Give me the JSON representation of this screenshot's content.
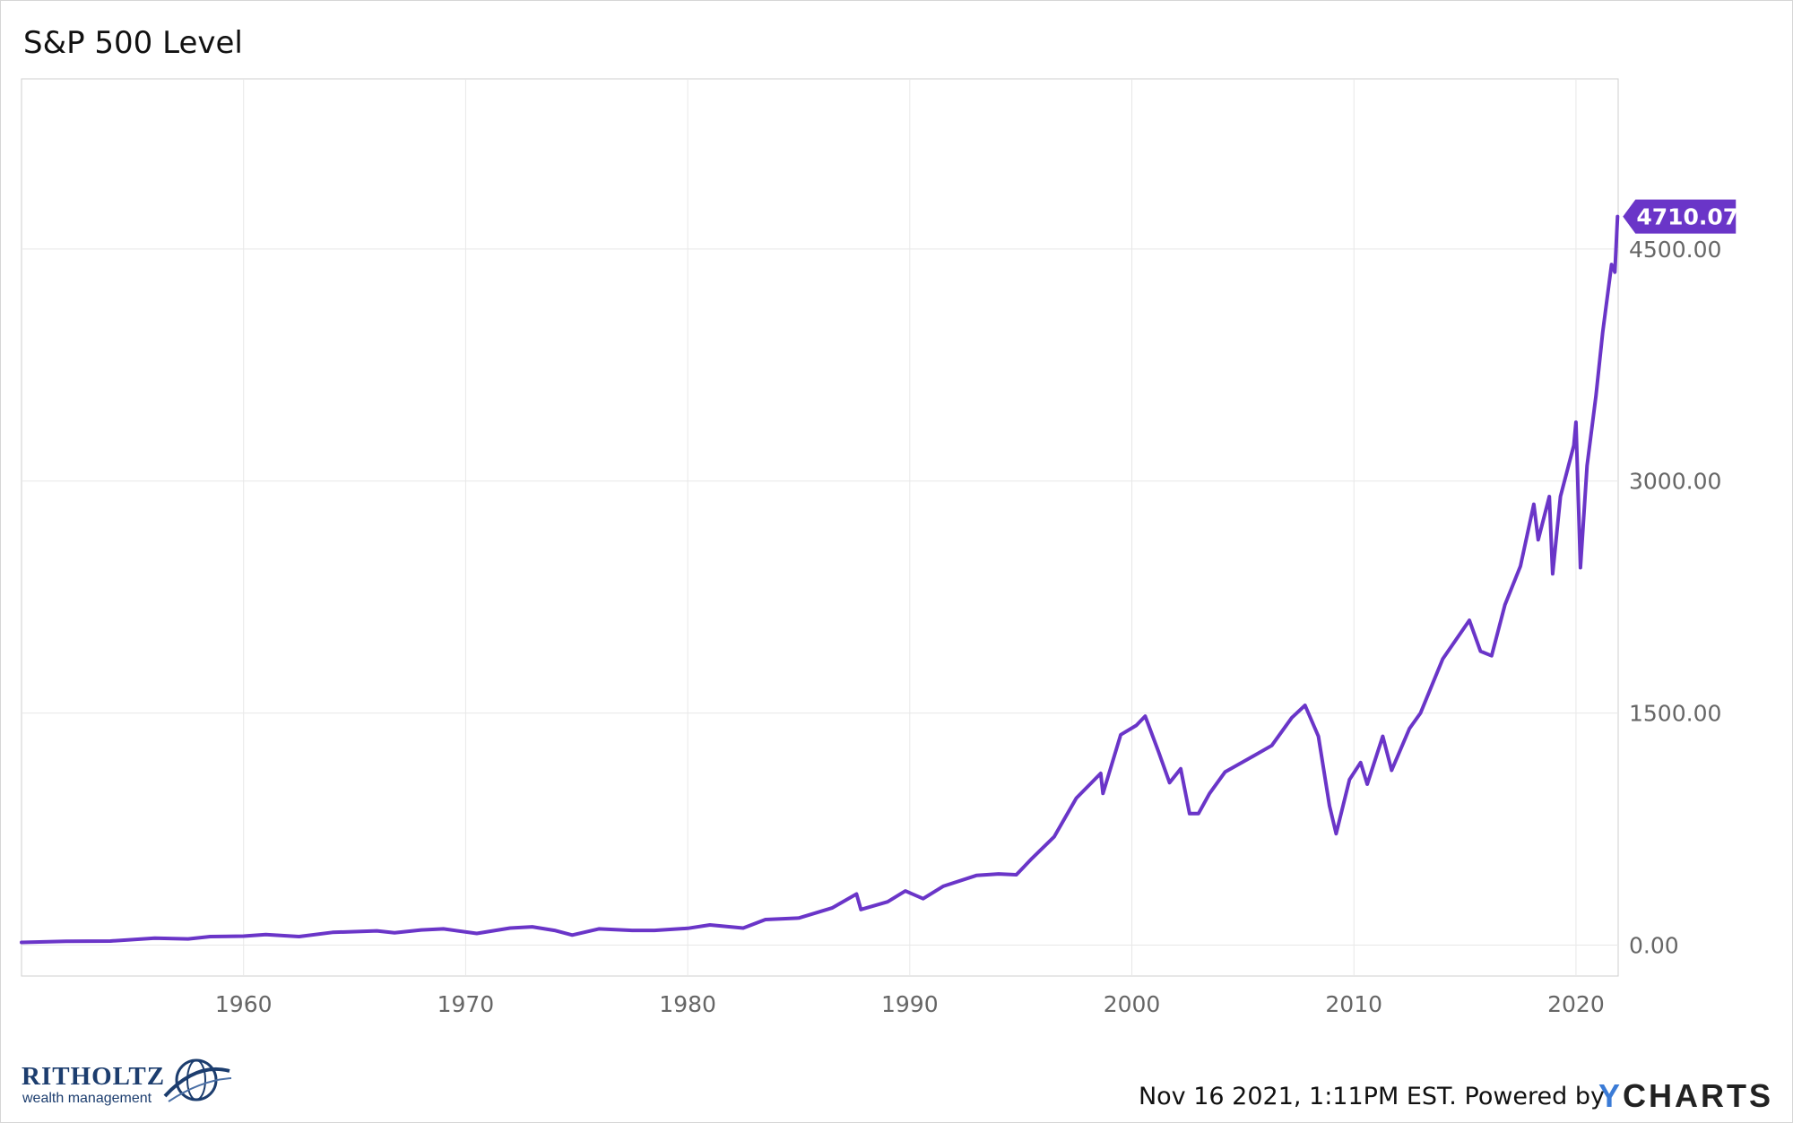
{
  "chart_data": {
    "type": "line",
    "title": "S&P 500 Level",
    "xlabel": "",
    "ylabel": "",
    "xlim": [
      1950.0,
      2021.9
    ],
    "ylim": [
      -200,
      5600
    ],
    "x_ticks": [
      1960,
      1970,
      1980,
      1990,
      2000,
      2010,
      2020
    ],
    "x_tick_labels": [
      "1960",
      "1970",
      "1980",
      "1990",
      "2000",
      "2010",
      "2020"
    ],
    "y_ticks": [
      0,
      1500,
      3000,
      4500
    ],
    "y_tick_labels": [
      "0.00",
      "1500.00",
      "3000.00",
      "4500.00"
    ],
    "grid": true,
    "legend": "none",
    "last_value_label": "4710.07",
    "series": [
      {
        "color": "#6a35c8",
        "points": [
          [
            1950.0,
            17
          ],
          [
            1952.0,
            24
          ],
          [
            1954.0,
            26
          ],
          [
            1956.0,
            45
          ],
          [
            1957.5,
            40
          ],
          [
            1958.5,
            55
          ],
          [
            1960.0,
            58
          ],
          [
            1961.0,
            68
          ],
          [
            1962.5,
            55
          ],
          [
            1964.0,
            82
          ],
          [
            1966.0,
            92
          ],
          [
            1966.8,
            80
          ],
          [
            1968.0,
            98
          ],
          [
            1969.0,
            105
          ],
          [
            1970.5,
            75
          ],
          [
            1972.0,
            110
          ],
          [
            1973.0,
            118
          ],
          [
            1974.0,
            95
          ],
          [
            1974.8,
            65
          ],
          [
            1976.0,
            105
          ],
          [
            1977.5,
            95
          ],
          [
            1978.5,
            95
          ],
          [
            1980.0,
            108
          ],
          [
            1981.0,
            130
          ],
          [
            1982.5,
            110
          ],
          [
            1983.5,
            165
          ],
          [
            1985.0,
            175
          ],
          [
            1986.5,
            240
          ],
          [
            1987.6,
            330
          ],
          [
            1987.8,
            230
          ],
          [
            1989.0,
            280
          ],
          [
            1989.8,
            350
          ],
          [
            1990.6,
            300
          ],
          [
            1991.5,
            380
          ],
          [
            1993.0,
            450
          ],
          [
            1994.0,
            460
          ],
          [
            1994.8,
            455
          ],
          [
            1995.5,
            560
          ],
          [
            1996.5,
            700
          ],
          [
            1997.5,
            950
          ],
          [
            1998.6,
            1110
          ],
          [
            1998.7,
            980
          ],
          [
            1999.5,
            1360
          ],
          [
            2000.2,
            1420
          ],
          [
            2000.6,
            1480
          ],
          [
            2001.2,
            1250
          ],
          [
            2001.7,
            1050
          ],
          [
            2002.2,
            1140
          ],
          [
            2002.6,
            850
          ],
          [
            2003.0,
            850
          ],
          [
            2003.5,
            980
          ],
          [
            2004.2,
            1120
          ],
          [
            2005.2,
            1200
          ],
          [
            2006.3,
            1290
          ],
          [
            2007.2,
            1470
          ],
          [
            2007.8,
            1550
          ],
          [
            2008.4,
            1350
          ],
          [
            2008.9,
            900
          ],
          [
            2009.2,
            720
          ],
          [
            2009.8,
            1070
          ],
          [
            2010.3,
            1180
          ],
          [
            2010.6,
            1040
          ],
          [
            2011.3,
            1350
          ],
          [
            2011.7,
            1130
          ],
          [
            2012.5,
            1400
          ],
          [
            2013.0,
            1500
          ],
          [
            2014.0,
            1850
          ],
          [
            2015.2,
            2100
          ],
          [
            2015.7,
            1900
          ],
          [
            2016.2,
            1870
          ],
          [
            2016.8,
            2200
          ],
          [
            2017.5,
            2450
          ],
          [
            2018.1,
            2850
          ],
          [
            2018.3,
            2620
          ],
          [
            2018.8,
            2900
          ],
          [
            2018.95,
            2400
          ],
          [
            2019.3,
            2900
          ],
          [
            2019.9,
            3230
          ],
          [
            2020.0,
            3380
          ],
          [
            2020.2,
            2440
          ],
          [
            2020.5,
            3100
          ],
          [
            2020.9,
            3550
          ],
          [
            2021.2,
            3960
          ],
          [
            2021.6,
            4400
          ],
          [
            2021.75,
            4350
          ],
          [
            2021.87,
            4710.07
          ]
        ]
      }
    ]
  },
  "footer": {
    "timestamp": "Nov 16 2021, 1:11PM EST.",
    "powered_by": "Powered by",
    "logo_y": "Y",
    "logo_rest": "CHARTS"
  },
  "brand": {
    "name": "RITHOLTZ",
    "subtitle": "wealth management",
    "color": "#1c3d6e"
  }
}
